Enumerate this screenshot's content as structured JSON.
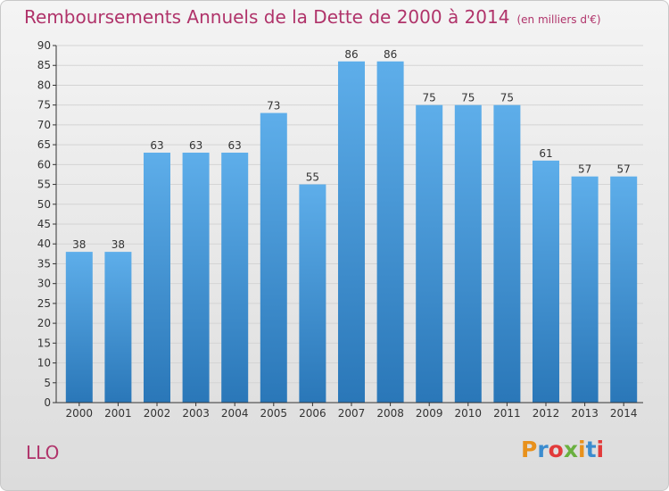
{
  "title": "Remboursements Annuels de la Dette de 2000 à 2014",
  "subtitle": "(en milliers d'€)",
  "commune": "LLO",
  "logo_text": "Proxiti",
  "colors": {
    "title": "#b0336a",
    "bar_top": "#5eaeea",
    "bar_bottom": "#2a77b8",
    "grid": "#d4d4d4",
    "axis": "#333333"
  },
  "chart_data": {
    "type": "bar",
    "categories": [
      "2000",
      "2001",
      "2002",
      "2003",
      "2004",
      "2005",
      "2006",
      "2007",
      "2008",
      "2009",
      "2010",
      "2011",
      "2012",
      "2013",
      "2014"
    ],
    "values": [
      38,
      38,
      63,
      63,
      63,
      73,
      55,
      86,
      86,
      75,
      75,
      75,
      61,
      57,
      57
    ],
    "title": "Remboursements Annuels de la Dette de 2000 à 2014",
    "ylabel": "",
    "xlabel": "",
    "ylim": [
      0,
      90
    ],
    "ytick_step": 5,
    "grid": true,
    "data_labels": true
  }
}
